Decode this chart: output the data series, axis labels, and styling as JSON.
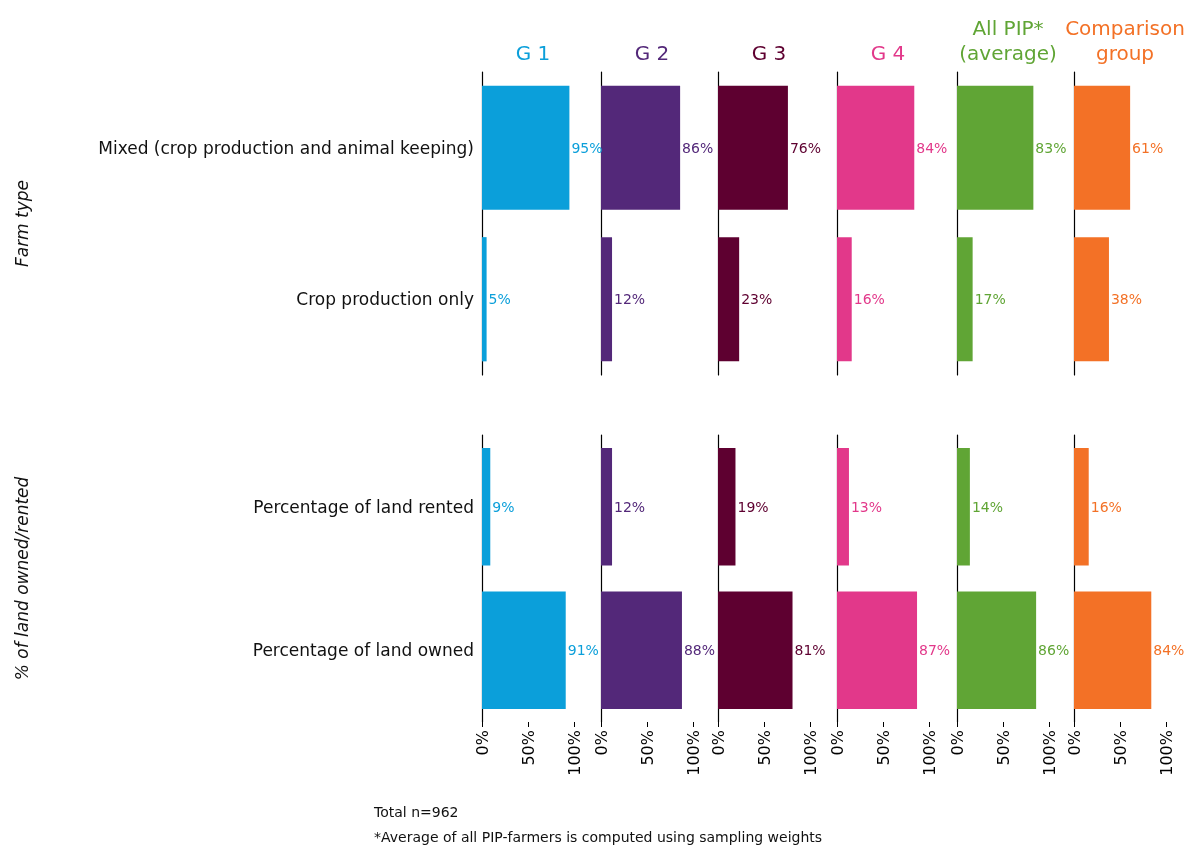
{
  "chart_data": [
    {
      "type": "bar",
      "orientation": "horizontal",
      "title": "G 1",
      "ylabel": "Farm type",
      "categories": [
        "Mixed (crop production and animal keeping)",
        "Crop production only"
      ],
      "values": [
        95,
        5
      ],
      "value_labels": [
        "95%",
        "5%"
      ],
      "color": "#0b9fda",
      "xlim": [
        0,
        100
      ],
      "tick_labels": "y"
    },
    {
      "type": "bar",
      "orientation": "horizontal",
      "title": "G 2",
      "categories": [
        null,
        null
      ],
      "values": [
        86,
        12
      ],
      "value_labels": [
        "86%",
        "12%"
      ],
      "color": "#532879",
      "xlim": [
        0,
        100
      ],
      "tick_labels": false
    },
    {
      "type": "bar",
      "orientation": "horizontal",
      "title": "G 3",
      "categories": [
        null,
        null
      ],
      "values": [
        76,
        23
      ],
      "value_labels": [
        "76%",
        "23%"
      ],
      "color": "#5e0030",
      "xlim": [
        0,
        100
      ],
      "tick_labels": false
    },
    {
      "type": "bar",
      "orientation": "horizontal",
      "title": "G 4",
      "categories": [
        null,
        null
      ],
      "values": [
        84,
        16
      ],
      "value_labels": [
        "84%",
        "16%"
      ],
      "color": "#e2388a",
      "xlim": [
        0,
        100
      ],
      "tick_labels": false
    },
    {
      "type": "bar",
      "orientation": "horizontal",
      "title": "All PIP*\n(average)",
      "categories": [
        null,
        null
      ],
      "values": [
        83,
        17
      ],
      "value_labels": [
        "83%",
        "17%"
      ],
      "color": "#60a535",
      "xlim": [
        0,
        100
      ],
      "tick_labels": false
    },
    {
      "type": "bar",
      "orientation": "horizontal",
      "title": "Comparison\ngroup",
      "categories": [
        null,
        null
      ],
      "values": [
        61,
        38
      ],
      "value_labels": [
        "61%",
        "38%"
      ],
      "color": "#f37126",
      "xlim": [
        0,
        100
      ],
      "tick_labels": false
    },
    {
      "type": "bar",
      "orientation": "horizontal",
      "ylabel": "% of land owned/rented",
      "categories": [
        "Percentage of land rented",
        "Percentage of land owned"
      ],
      "values": [
        9,
        91
      ],
      "value_labels": [
        "9%",
        "91%"
      ],
      "color": "#0b9fda",
      "xlim": [
        0,
        100
      ],
      "xticks": [
        {
          "value": 0,
          "label": "0%"
        },
        {
          "value": 50,
          "label": "50%"
        },
        {
          "value": 100,
          "label": "100%"
        }
      ],
      "annotations": [
        "Total n=962",
        "*Average of all PIP-farmers is computed using sampling weights"
      ]
    },
    {
      "type": "bar",
      "orientation": "horizontal",
      "categories": [
        null,
        null
      ],
      "values": [
        12,
        88
      ],
      "value_labels": [
        "12%",
        "88%"
      ],
      "color": "#532879",
      "xlim": [
        0,
        100
      ],
      "xticks": [
        {
          "value": 0,
          "label": "0%"
        },
        {
          "value": 50,
          "label": "50%"
        },
        {
          "value": 100,
          "label": "100%"
        }
      ],
      "tick_labels": "x"
    },
    {
      "type": "bar",
      "orientation": "horizontal",
      "categories": [
        null,
        null
      ],
      "values": [
        19,
        81
      ],
      "value_labels": [
        "19%",
        "81%"
      ],
      "color": "#5e0030",
      "xlim": [
        0,
        100
      ],
      "xticks": [
        {
          "value": 0,
          "label": "0%"
        },
        {
          "value": 50,
          "label": "50%"
        },
        {
          "value": 100,
          "label": "100%"
        }
      ],
      "tick_labels": "x"
    },
    {
      "type": "bar",
      "orientation": "horizontal",
      "categories": [
        null,
        null
      ],
      "values": [
        13,
        87
      ],
      "value_labels": [
        "13%",
        "87%"
      ],
      "color": "#e2388a",
      "xlim": [
        0,
        100
      ],
      "xticks": [
        {
          "value": 0,
          "label": "0%"
        },
        {
          "value": 50,
          "label": "50%"
        },
        {
          "value": 100,
          "label": "100%"
        }
      ],
      "tick_labels": "x"
    },
    {
      "type": "bar",
      "orientation": "horizontal",
      "categories": [
        null,
        null
      ],
      "values": [
        14,
        86
      ],
      "value_labels": [
        "14%",
        "86%"
      ],
      "color": "#60a535",
      "xlim": [
        0,
        100
      ],
      "xticks": [
        {
          "value": 0,
          "label": "0%"
        },
        {
          "value": 50,
          "label": "50%"
        },
        {
          "value": 100,
          "label": "100%"
        }
      ],
      "tick_labels": "x"
    },
    {
      "type": "bar",
      "orientation": "horizontal",
      "categories": [
        null,
        null
      ],
      "values": [
        16,
        84
      ],
      "value_labels": [
        "16%",
        "84%"
      ],
      "color": "#f37126",
      "xlim": [
        0,
        100
      ],
      "xticks": [
        {
          "value": 0,
          "label": "0%"
        },
        {
          "value": 50,
          "label": "50%"
        },
        {
          "value": 100,
          "label": "100%"
        }
      ],
      "tick_labels": "x"
    }
  ]
}
